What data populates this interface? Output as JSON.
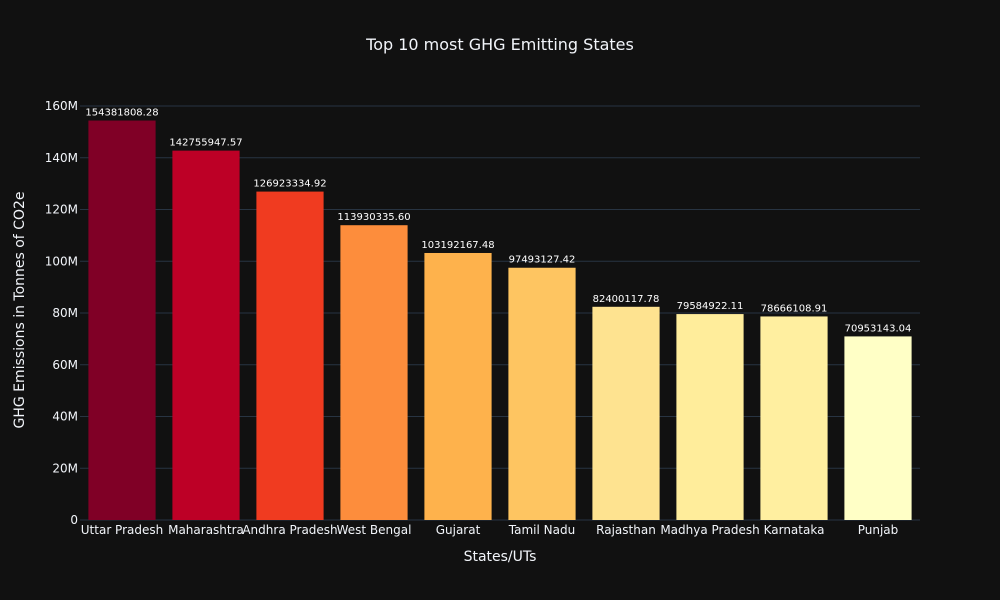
{
  "chart_data": {
    "type": "bar",
    "title": "Top 10 most GHG Emitting States",
    "xlabel": "States/UTs",
    "ylabel": "GHG Emissions in Tonnes of CO2e",
    "categories": [
      "Uttar Pradesh",
      "Maharashtra",
      "Andhra Pradesh",
      "West Bengal",
      "Gujarat",
      "Tamil Nadu",
      "Rajasthan",
      "Madhya Pradesh",
      "Karnataka",
      "Punjab"
    ],
    "values": [
      154381808.28,
      142755947.57,
      126923334.92,
      113930335.6,
      103192167.48,
      97493127.42,
      82400117.78,
      79584922.11,
      78666108.91,
      70953143.04
    ],
    "value_labels": [
      "154381808.28",
      "142755947.57",
      "126923334.92",
      "113930335.60",
      "103192167.48",
      "97493127.42",
      "82400117.78",
      "79584922.11",
      "78666108.91",
      "70953143.04"
    ],
    "bar_colors": [
      "#800026",
      "#bd0026",
      "#f03b20",
      "#fd8d3c",
      "#feb24c",
      "#fec561",
      "#fee390",
      "#ffed9b",
      "#ffefa0",
      "#ffffc6"
    ],
    "ylim": [
      0,
      160000000
    ],
    "y_ticks": [
      0,
      20000000,
      40000000,
      60000000,
      80000000,
      100000000,
      120000000,
      140000000,
      160000000
    ],
    "y_tick_labels": [
      "0",
      "20M",
      "40M",
      "60M",
      "80M",
      "100M",
      "120M",
      "140M",
      "160M"
    ],
    "grid": true,
    "legend": "none",
    "colors": {
      "background": "#111111",
      "gridline": "#283442",
      "text": "#f2f5fa"
    }
  }
}
